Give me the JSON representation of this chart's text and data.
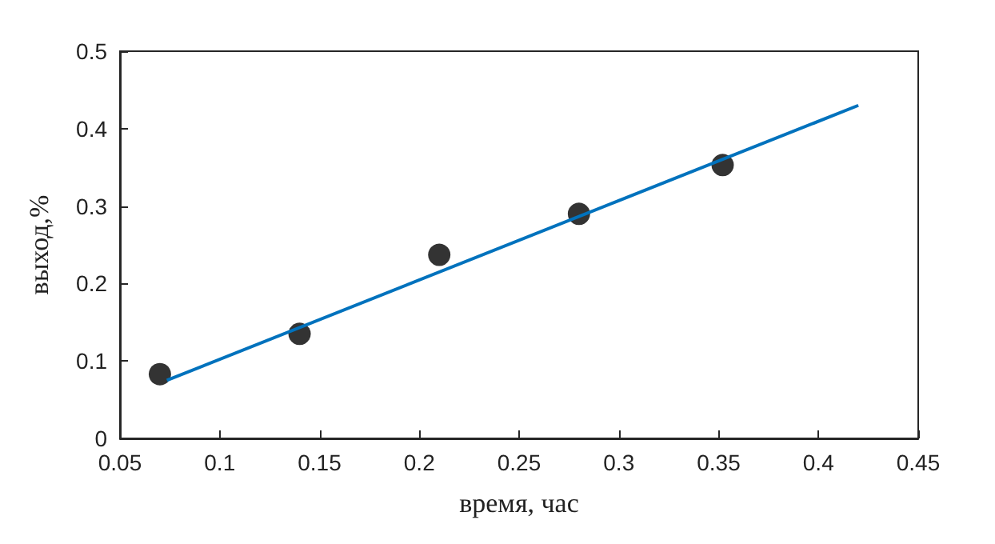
{
  "chart_data": {
    "type": "scatter",
    "xlabel": "время, час",
    "ylabel": "выход,%",
    "xlim": [
      0.05,
      0.45
    ],
    "xticks": [
      0.05,
      0.1,
      0.15,
      0.2,
      0.25,
      0.3,
      0.35,
      0.4,
      0.45
    ],
    "ylim": [
      0,
      0.5
    ],
    "yticks": [
      0,
      0.1,
      0.2,
      0.3,
      0.4,
      0.5
    ],
    "grid": false,
    "marker": "circle",
    "series": [
      {
        "color": "#000000",
        "x": [
          0.07,
          0.14,
          0.21,
          0.28,
          0.352
        ],
        "values": [
          0.083,
          0.135,
          0.237,
          0.29,
          0.353
        ]
      },
      {
        "type": "line",
        "color": "#0072bd",
        "x": [
          0.0735,
          0.42
        ],
        "values": [
          0.075,
          0.43
        ],
        "line_style": "solid",
        "marker": "none"
      }
    ]
  }
}
